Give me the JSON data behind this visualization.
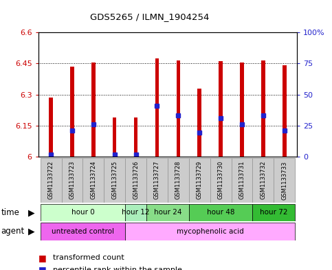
{
  "title": "GDS5265 / ILMN_1904254",
  "samples": [
    "GSM1133722",
    "GSM1133723",
    "GSM1133724",
    "GSM1133725",
    "GSM1133726",
    "GSM1133727",
    "GSM1133728",
    "GSM1133729",
    "GSM1133730",
    "GSM1133731",
    "GSM1133732",
    "GSM1133733"
  ],
  "bar_tops": [
    6.285,
    6.435,
    6.455,
    6.19,
    6.19,
    6.475,
    6.465,
    6.33,
    6.46,
    6.455,
    6.465,
    6.44
  ],
  "bar_bottoms": [
    6.0,
    6.0,
    6.0,
    6.0,
    6.0,
    6.0,
    6.0,
    6.0,
    6.0,
    6.0,
    6.0,
    6.0
  ],
  "blue_dot_vals": [
    6.01,
    6.125,
    6.155,
    6.01,
    6.01,
    6.245,
    6.2,
    6.115,
    6.185,
    6.155,
    6.2,
    6.125
  ],
  "ylim": [
    6.0,
    6.6
  ],
  "yticks_left": [
    6.0,
    6.15,
    6.3,
    6.45,
    6.6
  ],
  "ytick_labels_left": [
    "6",
    "6.15",
    "6.3",
    "6.45",
    "6.6"
  ],
  "ytick_labels_right": [
    "0",
    "25",
    "50",
    "75",
    "100%"
  ],
  "bar_color": "#cc0000",
  "dot_color": "#2222cc",
  "time_groups": [
    {
      "label": "hour 0",
      "start": 0,
      "end": 3,
      "color": "#ccffcc"
    },
    {
      "label": "hour 12",
      "start": 4,
      "end": 4,
      "color": "#aaeebb"
    },
    {
      "label": "hour 24",
      "start": 5,
      "end": 6,
      "color": "#88dd88"
    },
    {
      "label": "hour 48",
      "start": 7,
      "end": 9,
      "color": "#55cc55"
    },
    {
      "label": "hour 72",
      "start": 10,
      "end": 11,
      "color": "#33bb33"
    }
  ],
  "agent_groups": [
    {
      "label": "untreated control",
      "start": 0,
      "end": 3,
      "color": "#ee66ee"
    },
    {
      "label": "mycophenolic acid",
      "start": 4,
      "end": 11,
      "color": "#ffaaff"
    }
  ],
  "bg_color": "#ffffff",
  "sample_box_color": "#cccccc",
  "sample_box_border": "#999999"
}
